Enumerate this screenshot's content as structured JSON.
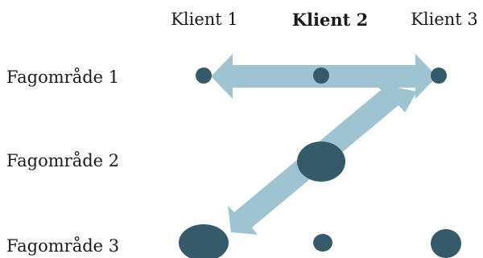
{
  "columns": [
    {
      "label": "Klient 1",
      "bold": false
    },
    {
      "label": "Klient 2",
      "bold": true
    },
    {
      "label": "Klient 3",
      "bold": false
    }
  ],
  "rows": [
    {
      "label": "Fagområde 1"
    },
    {
      "label": "Fagområde 2"
    },
    {
      "label": "Fagområde 3"
    }
  ],
  "colors": {
    "dot": "#355b6b",
    "arrow": "#9ec4d1"
  }
}
